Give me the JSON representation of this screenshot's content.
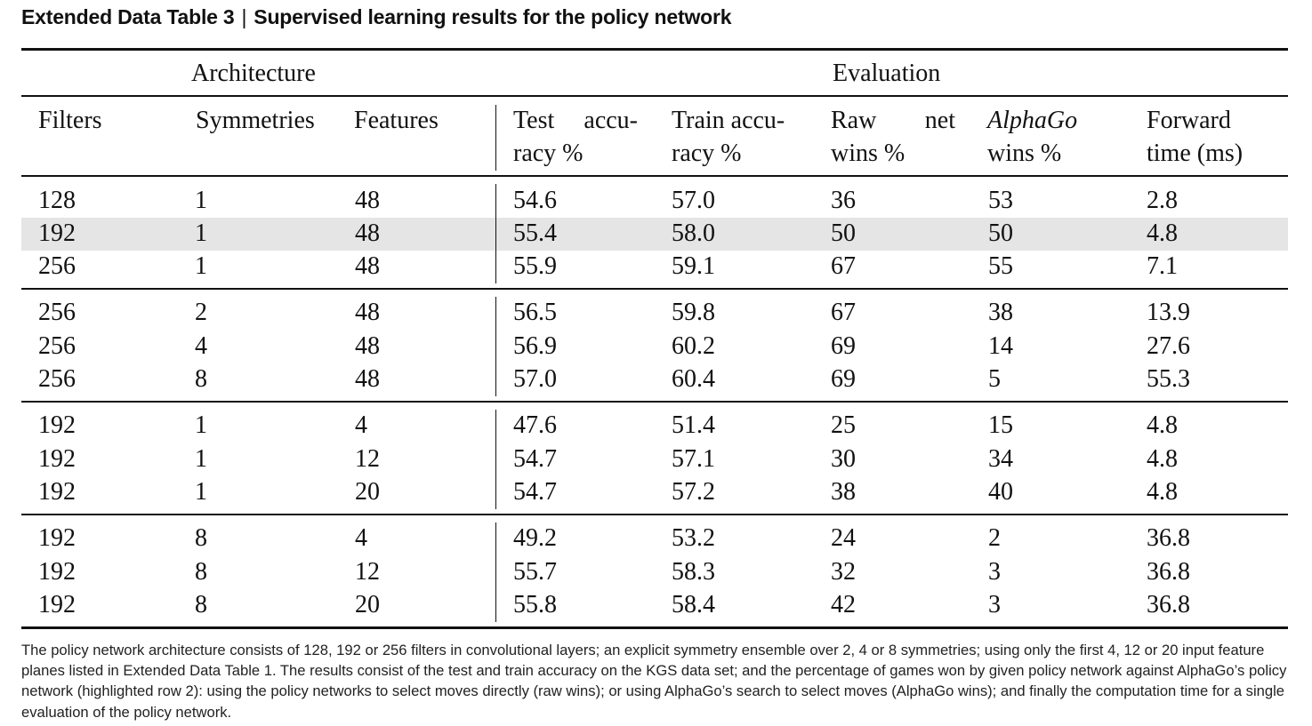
{
  "title": {
    "label": "Extended Data Table 3",
    "separator": "|",
    "text": "Supervised learning results for the policy network"
  },
  "group_headers": {
    "architecture": "Architecture",
    "evaluation": "Evaluation"
  },
  "columns": {
    "filters": "Filters",
    "symmetries": "Symmetries",
    "features": "Features",
    "test_acc": {
      "line1a": "Test",
      "line1b": "accu-",
      "line2": "racy %"
    },
    "train_acc": {
      "line1": "Train accu-",
      "line2": "racy %"
    },
    "raw_net": {
      "line1a": "Raw",
      "line1b": "net",
      "line2": "wins %"
    },
    "alphago": {
      "line1": "AlphaGo",
      "line2": "wins %"
    },
    "forward": {
      "line1": "Forward",
      "line2": "time (ms)"
    }
  },
  "rows": [
    [
      "128",
      "1",
      "48",
      "54.6",
      "57.0",
      "36",
      "53",
      "2.8"
    ],
    [
      "192",
      "1",
      "48",
      "55.4",
      "58.0",
      "50",
      "50",
      "4.8"
    ],
    [
      "256",
      "1",
      "48",
      "55.9",
      "59.1",
      "67",
      "55",
      "7.1"
    ],
    [
      "256",
      "2",
      "48",
      "56.5",
      "59.8",
      "67",
      "38",
      "13.9"
    ],
    [
      "256",
      "4",
      "48",
      "56.9",
      "60.2",
      "69",
      "14",
      "27.6"
    ],
    [
      "256",
      "8",
      "48",
      "57.0",
      "60.4",
      "69",
      "5",
      "55.3"
    ],
    [
      "192",
      "1",
      "4",
      "47.6",
      "51.4",
      "25",
      "15",
      "4.8"
    ],
    [
      "192",
      "1",
      "12",
      "54.7",
      "57.1",
      "30",
      "34",
      "4.8"
    ],
    [
      "192",
      "1",
      "20",
      "54.7",
      "57.2",
      "38",
      "40",
      "4.8"
    ],
    [
      "192",
      "8",
      "4",
      "49.2",
      "53.2",
      "24",
      "2",
      "36.8"
    ],
    [
      "192",
      "8",
      "12",
      "55.7",
      "58.3",
      "32",
      "3",
      "36.8"
    ],
    [
      "192",
      "8",
      "20",
      "55.8",
      "58.4",
      "42",
      "3",
      "36.8"
    ]
  ],
  "highlighted_row": 2,
  "caption": "The policy network architecture consists of 128, 192 or 256 filters in convolutional layers; an explicit symmetry ensemble over 2, 4 or 8 symmetries; using only the first 4, 12 or 20 input feature planes listed in Extended Data Table 1. The results consist of the test and train accuracy on the KGS data set; and the percentage of games won by given policy network against AlphaGo’s policy network (highlighted row 2): using the policy networks to select moves directly (raw wins); or using AlphaGo’s search to select moves (AlphaGo wins); and finally the computation time for a single evaluation of the policy network."
}
